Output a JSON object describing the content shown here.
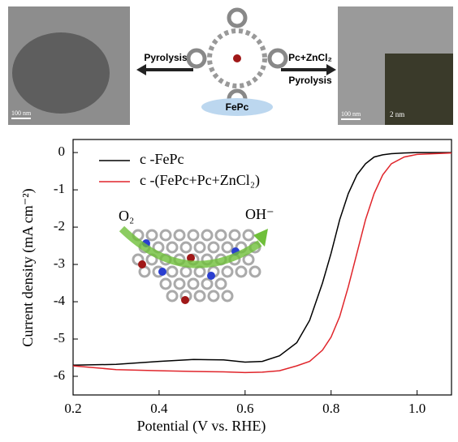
{
  "header": {
    "left_scale": "100 nm",
    "right_scale": "100 nm",
    "inset_scale": "2 nm",
    "left_arrow": "Pyrolysis",
    "right_arrow_top": "Pc+ZnCl₂",
    "right_arrow_bottom": "Pyrolysis",
    "molecule": "FePc"
  },
  "chart_data": {
    "type": "line",
    "x_label": "Potential (V vs. RHE)",
    "y_label": "Current density (mA cm⁻²)",
    "annotations": [
      "O₂",
      "OH⁻"
    ],
    "x": [
      0.2,
      0.3,
      0.4,
      0.48,
      0.55,
      0.6,
      0.64,
      0.68,
      0.72,
      0.75,
      0.78,
      0.8,
      0.82,
      0.84,
      0.86,
      0.88,
      0.9,
      0.92,
      0.94,
      0.97,
      1.0,
      1.08
    ],
    "series": [
      {
        "name": "c -FePc",
        "color": "#000000",
        "values": [
          -5.7,
          -5.68,
          -5.6,
          -5.55,
          -5.56,
          -5.62,
          -5.6,
          -5.45,
          -5.1,
          -4.5,
          -3.5,
          -2.7,
          -1.8,
          -1.1,
          -0.6,
          -0.3,
          -0.12,
          -0.06,
          -0.03,
          -0.01,
          0,
          0
        ]
      },
      {
        "name": "c -(FePc+Pc+ZnCl₂)",
        "color": "#e0252b",
        "values": [
          -5.72,
          -5.82,
          -5.85,
          -5.87,
          -5.88,
          -5.9,
          -5.89,
          -5.85,
          -5.72,
          -5.6,
          -5.3,
          -4.95,
          -4.4,
          -3.6,
          -2.7,
          -1.8,
          -1.1,
          -0.6,
          -0.3,
          -0.12,
          -0.05,
          -0.01
        ]
      }
    ],
    "xlim": [
      0.2,
      1.08
    ],
    "ylim": [
      -6.5,
      0.35
    ],
    "xticks": [
      0.2,
      0.4,
      0.6,
      0.8,
      {
        "value": 1,
        "label": "1.0"
      }
    ],
    "yticks": [
      0,
      -1,
      -2,
      -3,
      -4,
      -5,
      -6
    ]
  }
}
